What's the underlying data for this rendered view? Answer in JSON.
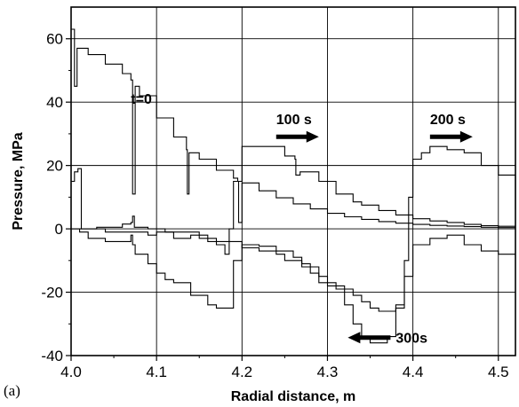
{
  "chart_data": {
    "type": "line",
    "title": "",
    "panel_label": "(a)",
    "xlabel": "Radial distance, m",
    "ylabel": "Pressure, MPa",
    "xlim": [
      4.0,
      4.52
    ],
    "ylim": [
      -40,
      70
    ],
    "xticks": [
      4.0,
      4.1,
      4.2,
      4.3,
      4.4,
      4.5
    ],
    "xtick_labels": [
      "4.0",
      "4.1",
      "4.2",
      "4.3",
      "4.4",
      "4.5"
    ],
    "yticks": [
      -40,
      -20,
      0,
      20,
      40,
      60
    ],
    "ytick_labels": [
      "-40",
      "-20",
      "0",
      "20",
      "40",
      "60"
    ],
    "grid": true,
    "annotations": [
      {
        "text": "t=0",
        "x": 4.07,
        "y": 39.5
      },
      {
        "text": "100 s",
        "x": 4.24,
        "y": 33.0,
        "arrow": "right"
      },
      {
        "text": "200 s",
        "x": 4.42,
        "y": 33.0,
        "arrow": "right"
      },
      {
        "text": "300s",
        "x": 4.38,
        "y": -36.0,
        "arrow": "left"
      }
    ],
    "series": [
      {
        "x": [
          4.0,
          4.004,
          4.004,
          4.007,
          4.007,
          4.02,
          4.04,
          4.06,
          4.07,
          4.072,
          4.073,
          4.075,
          4.075,
          4.08,
          4.1,
          4.12,
          4.135,
          4.136,
          4.137,
          4.138,
          4.15,
          4.17,
          4.19,
          4.195,
          4.196,
          4.198,
          4.2,
          4.22,
          4.24,
          4.26,
          4.28,
          4.3,
          4.32,
          4.34,
          4.36,
          4.38,
          4.4,
          4.42,
          4.44,
          4.46,
          4.48,
          4.5,
          4.52
        ],
        "y": [
          63,
          60,
          45,
          57,
          57,
          55,
          52,
          49,
          47,
          11,
          11,
          45,
          45,
          42,
          35,
          29,
          25,
          11,
          11,
          24,
          22,
          18.5,
          16,
          15,
          2,
          2,
          14.5,
          12,
          9.8,
          7.9,
          6.3,
          4.9,
          3.8,
          3.0,
          2.3,
          1.8,
          1.4,
          1.1,
          0.9,
          0.7,
          0.5,
          0.4,
          0.3
        ]
      },
      {
        "x": [
          4.0,
          4.004,
          4.008,
          4.01,
          4.012,
          4.014,
          4.03,
          4.06,
          4.07,
          4.072,
          4.074,
          4.09,
          4.11,
          4.13,
          4.15,
          4.17,
          4.18,
          4.185,
          4.19,
          4.2,
          4.22,
          4.25,
          4.262,
          4.263,
          4.266,
          4.268,
          4.29,
          4.31,
          4.33,
          4.34,
          4.36,
          4.38,
          4.4,
          4.42,
          4.44,
          4.46,
          4.48,
          4.5,
          4.52
        ],
        "y": [
          15,
          18,
          19,
          19,
          0,
          0,
          0.5,
          1.5,
          2,
          4,
          0.5,
          0,
          -1,
          -1,
          -3,
          -5,
          -8,
          0,
          15,
          26,
          26,
          23,
          22,
          17,
          17,
          18,
          15,
          11,
          8.5,
          7.5,
          5.8,
          4.4,
          3.2,
          2.5,
          2.0,
          1.4,
          1.0,
          0.8,
          0.6
        ]
      },
      {
        "x": [
          4.0,
          4.01,
          4.02,
          4.04,
          4.06,
          4.07,
          4.072,
          4.075,
          4.09,
          4.1,
          4.11,
          4.12,
          4.14,
          4.16,
          4.17,
          4.18,
          4.19,
          4.2,
          4.22,
          4.24,
          4.26,
          4.27,
          4.28,
          4.29,
          4.31,
          4.33,
          4.34,
          4.35,
          4.36,
          4.37,
          4.38,
          4.39,
          4.395,
          4.4,
          4.41,
          4.42,
          4.44,
          4.46,
          4.48,
          4.5,
          4.52
        ],
        "y": [
          0,
          -1,
          -3,
          -4,
          -4,
          -2,
          -5,
          -8,
          -11,
          -14,
          -16,
          -17,
          -21,
          -24,
          -25,
          -25,
          -10,
          -5,
          -5.5,
          -7,
          -9,
          -11,
          -14,
          -17,
          -19,
          -21,
          -23,
          -25,
          -26,
          -26,
          -24,
          -10,
          10,
          22,
          24,
          26,
          25,
          24,
          20,
          17,
          6
        ]
      },
      {
        "x": [
          4.0,
          4.02,
          4.04,
          4.06,
          4.08,
          4.09,
          4.1,
          4.12,
          4.14,
          4.16,
          4.18,
          4.2,
          4.22,
          4.24,
          4.25,
          4.27,
          4.29,
          4.3,
          4.32,
          4.33,
          4.34,
          4.35,
          4.36,
          4.37,
          4.38,
          4.39,
          4.4,
          4.42,
          4.44,
          4.46,
          4.48,
          4.5,
          4.52
        ],
        "y": [
          0,
          0,
          -1,
          -1,
          -1,
          -2,
          -1,
          -3,
          -2,
          -4,
          -4,
          -6,
          -7,
          -8,
          -10,
          -12,
          -15,
          -18,
          -24,
          -30,
          -34,
          -36,
          -36,
          -34,
          -25,
          -15,
          -5,
          -3,
          -2,
          -5,
          -7,
          -8,
          -8
        ]
      }
    ]
  }
}
